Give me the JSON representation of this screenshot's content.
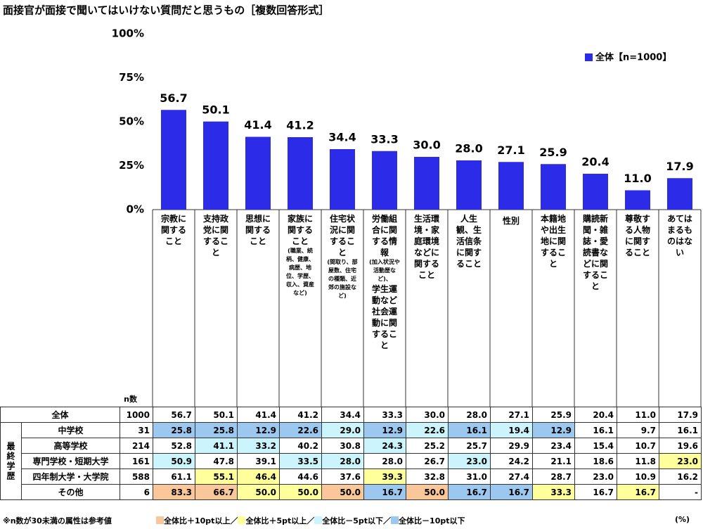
{
  "chart_data": {
    "type": "bar",
    "title": "面接官が面接で聞いてはいけない質問だと思うもの［複数回答形式］",
    "categories": [
      [
        "宗教に関すること"
      ],
      [
        "支持政党に関すること"
      ],
      [
        "思想に関すること"
      ],
      [
        "家族に関すること",
        "(職業、続柄、健康、病歴、地位、学歴、収入、資産など)"
      ],
      [
        "住宅状況に関すること",
        "(間取り、部屋数、住宅の種類、近郊の施設など)"
      ],
      [
        "労働組合に関する情報",
        "(加入状況や活動歴など)、",
        "学生運動など社会運動に関すること"
      ],
      [
        "生活環境・家庭環境などに関すること"
      ],
      [
        "人生観、生活信条に関すること"
      ],
      [
        "性別"
      ],
      [
        "本籍地や出生地に関すること"
      ],
      [
        "購読新聞・雑誌・愛読書などに関すること"
      ],
      [
        "尊敬する人物に関すること"
      ],
      [
        "あてはまるものはない"
      ]
    ],
    "series": [
      {
        "name": "全体【n=1000】",
        "color": "#2b2be8",
        "values": [
          56.7,
          50.1,
          41.4,
          41.2,
          34.4,
          33.3,
          30.0,
          28.0,
          27.1,
          25.9,
          20.4,
          11.0,
          17.9
        ],
        "value_labels": [
          "56.7",
          "50.1",
          "41.4",
          "41.2",
          "34.4",
          "33.3",
          "30.0",
          "28.0",
          "27.1",
          "25.9",
          "20.4",
          "11.0",
          "17.9"
        ]
      }
    ],
    "ylim": [
      0,
      100
    ],
    "yticks": [
      {
        "value": 0,
        "label": "0%"
      },
      {
        "value": 25,
        "label": "25%"
      },
      {
        "value": 50,
        "label": "50%"
      },
      {
        "value": 75,
        "label": "75%"
      },
      {
        "value": 100,
        "label": "100%"
      }
    ],
    "legend": "upper right"
  },
  "table": {
    "n_header": "n数",
    "group_label": "最終学歴",
    "rows": [
      {
        "label": "全体",
        "n": "1000",
        "values": [
          "56.7",
          "50.1",
          "41.4",
          "41.2",
          "34.4",
          "33.3",
          "30.0",
          "28.0",
          "27.1",
          "25.9",
          "20.4",
          "11.0",
          "17.9"
        ],
        "levels": [
          null,
          null,
          null,
          null,
          null,
          null,
          null,
          null,
          null,
          null,
          null,
          null,
          null
        ]
      },
      {
        "label": "中学校",
        "n": "31",
        "values": [
          "25.8",
          "25.8",
          "12.9",
          "22.6",
          "29.0",
          "12.9",
          "22.6",
          "16.1",
          "19.4",
          "12.9",
          "16.1",
          "9.7",
          "16.1"
        ],
        "levels": [
          3,
          3,
          3,
          3,
          2,
          3,
          2,
          3,
          2,
          3,
          null,
          null,
          null
        ]
      },
      {
        "label": "高等学校",
        "n": "214",
        "values": [
          "52.8",
          "41.1",
          "33.2",
          "40.2",
          "30.8",
          "24.3",
          "25.2",
          "25.7",
          "29.9",
          "23.4",
          "15.4",
          "10.7",
          "19.6"
        ],
        "levels": [
          null,
          2,
          2,
          null,
          null,
          2,
          null,
          null,
          null,
          null,
          null,
          null,
          null
        ]
      },
      {
        "label": "専門学校・短期大学",
        "n": "161",
        "values": [
          "50.9",
          "47.8",
          "39.1",
          "33.5",
          "28.0",
          "28.0",
          "26.7",
          "23.0",
          "24.2",
          "21.1",
          "18.6",
          "11.8",
          "23.0"
        ],
        "levels": [
          2,
          null,
          null,
          2,
          2,
          null,
          null,
          2,
          null,
          null,
          null,
          null,
          1
        ]
      },
      {
        "label": "四年制大学・大学院",
        "n": "588",
        "values": [
          "61.1",
          "55.1",
          "46.4",
          "44.6",
          "37.6",
          "39.3",
          "32.8",
          "31.0",
          "27.4",
          "28.7",
          "23.0",
          "10.9",
          "16.2"
        ],
        "levels": [
          null,
          1,
          1,
          null,
          null,
          1,
          null,
          null,
          null,
          null,
          null,
          null,
          null
        ]
      },
      {
        "label": "その他",
        "n": "6",
        "values": [
          "83.3",
          "66.7",
          "50.0",
          "50.0",
          "50.0",
          "16.7",
          "50.0",
          "16.7",
          "16.7",
          "33.3",
          "16.7",
          "16.7",
          "-"
        ],
        "levels": [
          0,
          0,
          1,
          1,
          0,
          3,
          0,
          3,
          3,
          1,
          null,
          1,
          null
        ]
      }
    ],
    "legend": [
      {
        "label": "全体比＋10pt以上",
        "color": "#f9c79a"
      },
      {
        "label": "全体比＋5pt以上",
        "color": "#ffff9c"
      },
      {
        "label": "全体比－5pt以下",
        "color": "#ccf4fc"
      },
      {
        "label": "全体比－10pt以下",
        "color": "#9cc8f0"
      }
    ],
    "legend_separator": "／"
  },
  "footnote": "※n数が30未満の属性は参考値",
  "unit": "(%)"
}
